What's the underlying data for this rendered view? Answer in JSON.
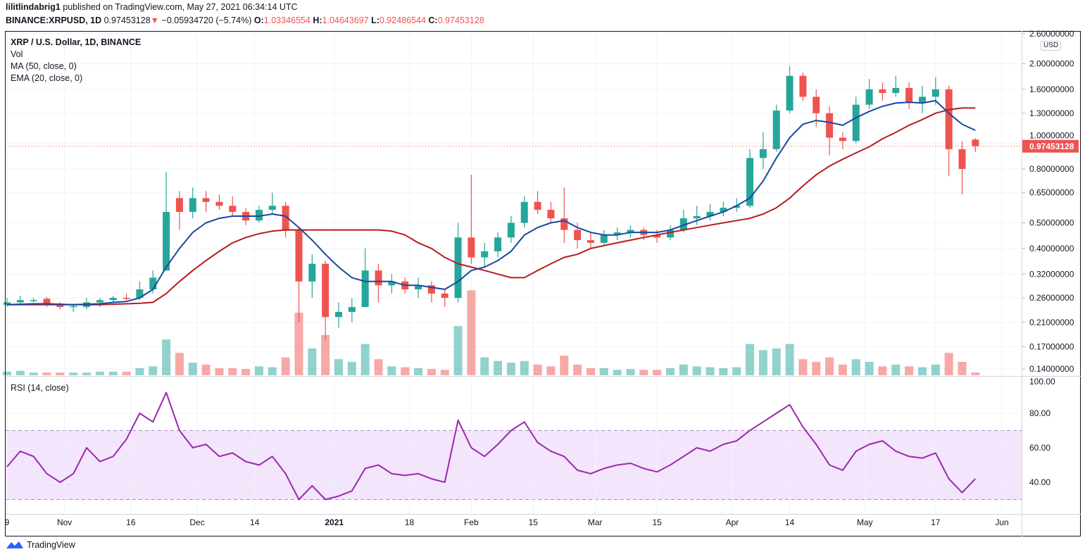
{
  "header": {
    "publisher": "lilitlindabrig1",
    "published_text": "published on TradingView.com, May 27, 2021 06:34:14 UTC",
    "symbol": "BINANCE:XRPUSD, 1D",
    "last": "0.97453128",
    "change": "−0.05934720 (−5.74%)",
    "o_label": "O:",
    "o": "1.03346554",
    "h_label": "H:",
    "h": "1.04643697",
    "l_label": "L:",
    "l": "0.92486544",
    "c_label": "C:",
    "c": "0.97453128",
    "direction_icon": "triangle-down"
  },
  "legend": {
    "title": "XRP / U.S. Dollar, 1D, BINANCE",
    "vol": "Vol",
    "ma": "MA (50, close, 0)",
    "ema": "EMA (20, close, 0)",
    "rsi": "RSI (14, close)"
  },
  "currency_badge": "USD",
  "current_price_label": "0.97453128",
  "footer": {
    "brand": "TradingView"
  },
  "colors": {
    "up": "#26a69a",
    "down": "#ef5350",
    "ema": "#1848a0",
    "ma": "#b71c1c",
    "rsi": "#9c27b0",
    "rsi_band": "#f3e5fc"
  },
  "chart_data": {
    "type": "candlestick",
    "price_scale": "log",
    "ylim": [
      0.14,
      2.6
    ],
    "price_ticks": [
      "2.60000000",
      "2.00000000",
      "1.60000000",
      "1.30000000",
      "1.00000000",
      "0.80000000",
      "0.65000000",
      "0.50000000",
      "0.40000000",
      "0.32000000",
      "0.26000000",
      "0.21000000",
      "0.17000000",
      "0.14000000"
    ],
    "rsi_ticks": [
      "100.00",
      "80.00",
      "60.00",
      "40.00"
    ],
    "rsi_band": [
      30,
      70
    ],
    "x_ticks": [
      {
        "label": "9",
        "date": "2020-10-19"
      },
      {
        "label": "Nov",
        "date": "2020-11-01"
      },
      {
        "label": "16",
        "date": "2020-11-16"
      },
      {
        "label": "Dec",
        "date": "2020-12-01"
      },
      {
        "label": "14",
        "date": "2020-12-14"
      },
      {
        "label": "2021",
        "date": "2021-01-01"
      },
      {
        "label": "18",
        "date": "2021-01-18"
      },
      {
        "label": "Feb",
        "date": "2021-02-01"
      },
      {
        "label": "15",
        "date": "2021-02-15"
      },
      {
        "label": "Mar",
        "date": "2021-03-01"
      },
      {
        "label": "15",
        "date": "2021-03-15"
      },
      {
        "label": "Apr",
        "date": "2021-04-01"
      },
      {
        "label": "14",
        "date": "2021-04-14"
      },
      {
        "label": "May",
        "date": "2021-05-01"
      },
      {
        "label": "17",
        "date": "2021-05-17"
      },
      {
        "label": "Jun",
        "date": "2021-06-01"
      }
    ],
    "candles_columns": [
      "date",
      "open",
      "high",
      "low",
      "close",
      "volume_relative"
    ],
    "candles": [
      [
        "2020-10-19",
        0.245,
        0.26,
        0.24,
        0.25,
        4
      ],
      [
        "2020-10-22",
        0.25,
        0.265,
        0.245,
        0.255,
        5
      ],
      [
        "2020-10-25",
        0.255,
        0.26,
        0.25,
        0.255,
        3
      ],
      [
        "2020-10-28",
        0.258,
        0.262,
        0.24,
        0.245,
        3
      ],
      [
        "2020-10-31",
        0.245,
        0.25,
        0.235,
        0.24,
        3
      ],
      [
        "2020-11-03",
        0.24,
        0.245,
        0.23,
        0.242,
        3
      ],
      [
        "2020-11-06",
        0.24,
        0.26,
        0.235,
        0.25,
        3
      ],
      [
        "2020-11-09",
        0.25,
        0.26,
        0.24,
        0.255,
        4
      ],
      [
        "2020-11-12",
        0.255,
        0.265,
        0.25,
        0.26,
        4
      ],
      [
        "2020-11-15",
        0.26,
        0.27,
        0.255,
        0.258,
        4
      ],
      [
        "2020-11-18",
        0.26,
        0.3,
        0.255,
        0.28,
        8
      ],
      [
        "2020-11-21",
        0.28,
        0.33,
        0.27,
        0.31,
        10
      ],
      [
        "2020-11-24",
        0.33,
        0.78,
        0.33,
        0.55,
        40
      ],
      [
        "2020-11-27",
        0.62,
        0.66,
        0.47,
        0.55,
        25
      ],
      [
        "2020-11-30",
        0.55,
        0.68,
        0.52,
        0.62,
        14
      ],
      [
        "2020-12-03",
        0.62,
        0.66,
        0.55,
        0.6,
        12
      ],
      [
        "2020-12-06",
        0.6,
        0.64,
        0.56,
        0.58,
        8
      ],
      [
        "2020-12-09",
        0.58,
        0.63,
        0.53,
        0.55,
        8
      ],
      [
        "2020-12-12",
        0.55,
        0.57,
        0.49,
        0.51,
        7
      ],
      [
        "2020-12-15",
        0.51,
        0.58,
        0.5,
        0.56,
        10
      ],
      [
        "2020-12-18",
        0.56,
        0.65,
        0.54,
        0.58,
        9
      ],
      [
        "2020-12-21",
        0.58,
        0.6,
        0.44,
        0.47,
        20
      ],
      [
        "2020-12-24",
        0.47,
        0.48,
        0.21,
        0.3,
        70
      ],
      [
        "2020-12-27",
        0.3,
        0.38,
        0.26,
        0.35,
        30
      ],
      [
        "2020-12-30",
        0.35,
        0.36,
        0.18,
        0.22,
        45
      ],
      [
        "2021-01-02",
        0.22,
        0.25,
        0.2,
        0.23,
        18
      ],
      [
        "2021-01-05",
        0.23,
        0.26,
        0.21,
        0.24,
        15
      ],
      [
        "2021-01-08",
        0.24,
        0.4,
        0.24,
        0.33,
        35
      ],
      [
        "2021-01-11",
        0.33,
        0.35,
        0.25,
        0.29,
        18
      ],
      [
        "2021-01-14",
        0.29,
        0.32,
        0.27,
        0.3,
        10
      ],
      [
        "2021-01-17",
        0.3,
        0.31,
        0.27,
        0.28,
        9
      ],
      [
        "2021-01-20",
        0.28,
        0.31,
        0.26,
        0.29,
        8
      ],
      [
        "2021-01-23",
        0.29,
        0.3,
        0.25,
        0.27,
        7
      ],
      [
        "2021-01-26",
        0.27,
        0.28,
        0.24,
        0.26,
        6
      ],
      [
        "2021-01-29",
        0.26,
        0.5,
        0.25,
        0.44,
        55
      ],
      [
        "2021-02-01",
        0.44,
        0.76,
        0.35,
        0.37,
        95
      ],
      [
        "2021-02-04",
        0.37,
        0.42,
        0.34,
        0.39,
        20
      ],
      [
        "2021-02-07",
        0.39,
        0.46,
        0.37,
        0.44,
        16
      ],
      [
        "2021-02-10",
        0.44,
        0.53,
        0.42,
        0.5,
        14
      ],
      [
        "2021-02-13",
        0.5,
        0.63,
        0.48,
        0.6,
        16
      ],
      [
        "2021-02-16",
        0.6,
        0.66,
        0.54,
        0.56,
        12
      ],
      [
        "2021-02-19",
        0.56,
        0.6,
        0.5,
        0.52,
        10
      ],
      [
        "2021-02-22",
        0.52,
        0.68,
        0.42,
        0.47,
        22
      ],
      [
        "2021-02-25",
        0.47,
        0.5,
        0.4,
        0.43,
        12
      ],
      [
        "2021-02-28",
        0.43,
        0.46,
        0.4,
        0.42,
        8
      ],
      [
        "2021-03-03",
        0.42,
        0.47,
        0.41,
        0.45,
        8
      ],
      [
        "2021-03-06",
        0.45,
        0.48,
        0.43,
        0.46,
        6
      ],
      [
        "2021-03-09",
        0.46,
        0.49,
        0.44,
        0.47,
        7
      ],
      [
        "2021-03-12",
        0.47,
        0.48,
        0.43,
        0.45,
        6
      ],
      [
        "2021-03-15",
        0.45,
        0.47,
        0.42,
        0.44,
        6
      ],
      [
        "2021-03-18",
        0.44,
        0.49,
        0.43,
        0.47,
        8
      ],
      [
        "2021-03-21",
        0.47,
        0.56,
        0.46,
        0.52,
        12
      ],
      [
        "2021-03-24",
        0.52,
        0.58,
        0.49,
        0.53,
        10
      ],
      [
        "2021-03-27",
        0.53,
        0.59,
        0.51,
        0.55,
        9
      ],
      [
        "2021-03-30",
        0.55,
        0.6,
        0.53,
        0.57,
        8
      ],
      [
        "2021-04-02",
        0.57,
        0.62,
        0.55,
        0.58,
        9
      ],
      [
        "2021-04-05",
        0.58,
        0.95,
        0.57,
        0.88,
        35
      ],
      [
        "2021-04-08",
        0.88,
        1.1,
        0.8,
        0.95,
        28
      ],
      [
        "2021-04-11",
        0.95,
        1.4,
        0.93,
        1.33,
        30
      ],
      [
        "2021-04-14",
        1.33,
        1.96,
        1.3,
        1.8,
        35
      ],
      [
        "2021-04-17",
        1.8,
        1.85,
        1.45,
        1.5,
        18
      ],
      [
        "2021-04-20",
        1.5,
        1.6,
        1.15,
        1.3,
        15
      ],
      [
        "2021-04-23",
        1.3,
        1.38,
        0.9,
        1.05,
        20
      ],
      [
        "2021-04-26",
        1.05,
        1.1,
        0.95,
        1.02,
        12
      ],
      [
        "2021-04-29",
        1.02,
        1.5,
        1.0,
        1.4,
        18
      ],
      [
        "2021-05-02",
        1.4,
        1.75,
        1.35,
        1.6,
        15
      ],
      [
        "2021-05-05",
        1.6,
        1.7,
        1.45,
        1.55,
        10
      ],
      [
        "2021-05-08",
        1.55,
        1.8,
        1.5,
        1.62,
        12
      ],
      [
        "2021-05-11",
        1.62,
        1.7,
        1.35,
        1.42,
        10
      ],
      [
        "2021-05-14",
        1.42,
        1.65,
        1.3,
        1.5,
        9
      ],
      [
        "2021-05-17",
        1.5,
        1.78,
        1.4,
        1.6,
        12
      ],
      [
        "2021-05-20",
        1.6,
        1.65,
        0.75,
        0.95,
        25
      ],
      [
        "2021-05-23",
        0.95,
        1.02,
        0.64,
        0.8,
        15
      ],
      [
        "2021-05-26",
        1.033,
        1.046,
        0.925,
        0.975,
        3
      ]
    ],
    "ma50": [
      0.245,
      0.245,
      0.245,
      0.245,
      0.245,
      0.245,
      0.245,
      0.245,
      0.246,
      0.247,
      0.248,
      0.25,
      0.27,
      0.3,
      0.33,
      0.36,
      0.39,
      0.42,
      0.44,
      0.455,
      0.465,
      0.47,
      0.47,
      0.47,
      0.47,
      0.47,
      0.47,
      0.47,
      0.47,
      0.465,
      0.45,
      0.42,
      0.4,
      0.37,
      0.35,
      0.34,
      0.33,
      0.32,
      0.31,
      0.31,
      0.33,
      0.35,
      0.37,
      0.38,
      0.4,
      0.41,
      0.42,
      0.43,
      0.44,
      0.45,
      0.46,
      0.47,
      0.48,
      0.49,
      0.5,
      0.51,
      0.52,
      0.54,
      0.57,
      0.62,
      0.69,
      0.76,
      0.82,
      0.87,
      0.92,
      0.97,
      1.04,
      1.1,
      1.17,
      1.23,
      1.3,
      1.34,
      1.36,
      1.36
    ],
    "ema20": [
      0.245,
      0.246,
      0.247,
      0.247,
      0.246,
      0.245,
      0.246,
      0.247,
      0.25,
      0.252,
      0.26,
      0.28,
      0.34,
      0.4,
      0.46,
      0.5,
      0.52,
      0.53,
      0.53,
      0.53,
      0.54,
      0.53,
      0.48,
      0.43,
      0.38,
      0.34,
      0.31,
      0.3,
      0.3,
      0.3,
      0.29,
      0.29,
      0.285,
      0.28,
      0.3,
      0.33,
      0.34,
      0.36,
      0.39,
      0.45,
      0.48,
      0.5,
      0.51,
      0.48,
      0.46,
      0.45,
      0.45,
      0.46,
      0.46,
      0.46,
      0.47,
      0.49,
      0.51,
      0.53,
      0.55,
      0.58,
      0.62,
      0.72,
      0.88,
      1.05,
      1.18,
      1.22,
      1.2,
      1.17,
      1.25,
      1.32,
      1.38,
      1.42,
      1.43,
      1.42,
      1.45,
      1.3,
      1.18,
      1.12
    ],
    "rsi": [
      49,
      58,
      55,
      45,
      40,
      45,
      60,
      52,
      55,
      65,
      80,
      75,
      92,
      70,
      60,
      62,
      55,
      57,
      52,
      50,
      55,
      45,
      30,
      38,
      30,
      32,
      35,
      48,
      50,
      45,
      44,
      45,
      42,
      40,
      76,
      60,
      55,
      62,
      70,
      75,
      63,
      58,
      55,
      47,
      45,
      48,
      50,
      51,
      48,
      46,
      50,
      55,
      60,
      58,
      62,
      64,
      70,
      75,
      80,
      85,
      72,
      62,
      50,
      47,
      58,
      62,
      64,
      58,
      55,
      54,
      57,
      42,
      34,
      42
    ]
  }
}
